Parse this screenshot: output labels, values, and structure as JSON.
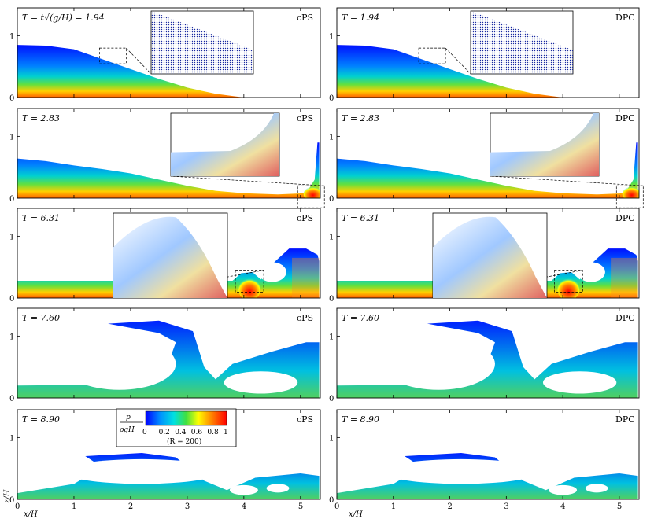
{
  "figure": {
    "left_method": "cPS",
    "right_method": "DPC",
    "panels": [
      {
        "row": 0,
        "time_label_left": "T = t√(g/H) = 1.94",
        "time_label_right": "T = 1.94"
      },
      {
        "row": 1,
        "time_label_left": "T = 2.83",
        "time_label_right": "T = 2.83"
      },
      {
        "row": 2,
        "time_label_left": "T = 6.31",
        "time_label_right": "T = 6.31"
      },
      {
        "row": 3,
        "time_label_left": "T = 7.60",
        "time_label_right": "T = 7.60"
      },
      {
        "row": 4,
        "time_label_left": "T = 8.90",
        "time_label_right": "T = 8.90"
      }
    ],
    "x_axis": {
      "label": "x/H",
      "ticks": [
        "0",
        "1",
        "2",
        "3",
        "4",
        "5"
      ],
      "range": [
        0,
        5.35
      ]
    },
    "y_axis": {
      "label": "z/H",
      "ticks": [
        "0",
        "1"
      ],
      "range": [
        0,
        1.45
      ]
    },
    "colorbar": {
      "quantity_numerator": "p",
      "quantity_denominator": "ρgH",
      "ticks": [
        "0",
        "0.2",
        "0.4",
        "0.6",
        "0.8",
        "1"
      ],
      "note": "(R = 200)",
      "colors": [
        "#0000ff",
        "#0090ff",
        "#00e0e0",
        "#40e040",
        "#ffff00",
        "#ff8000",
        "#ff0000"
      ]
    }
  }
}
